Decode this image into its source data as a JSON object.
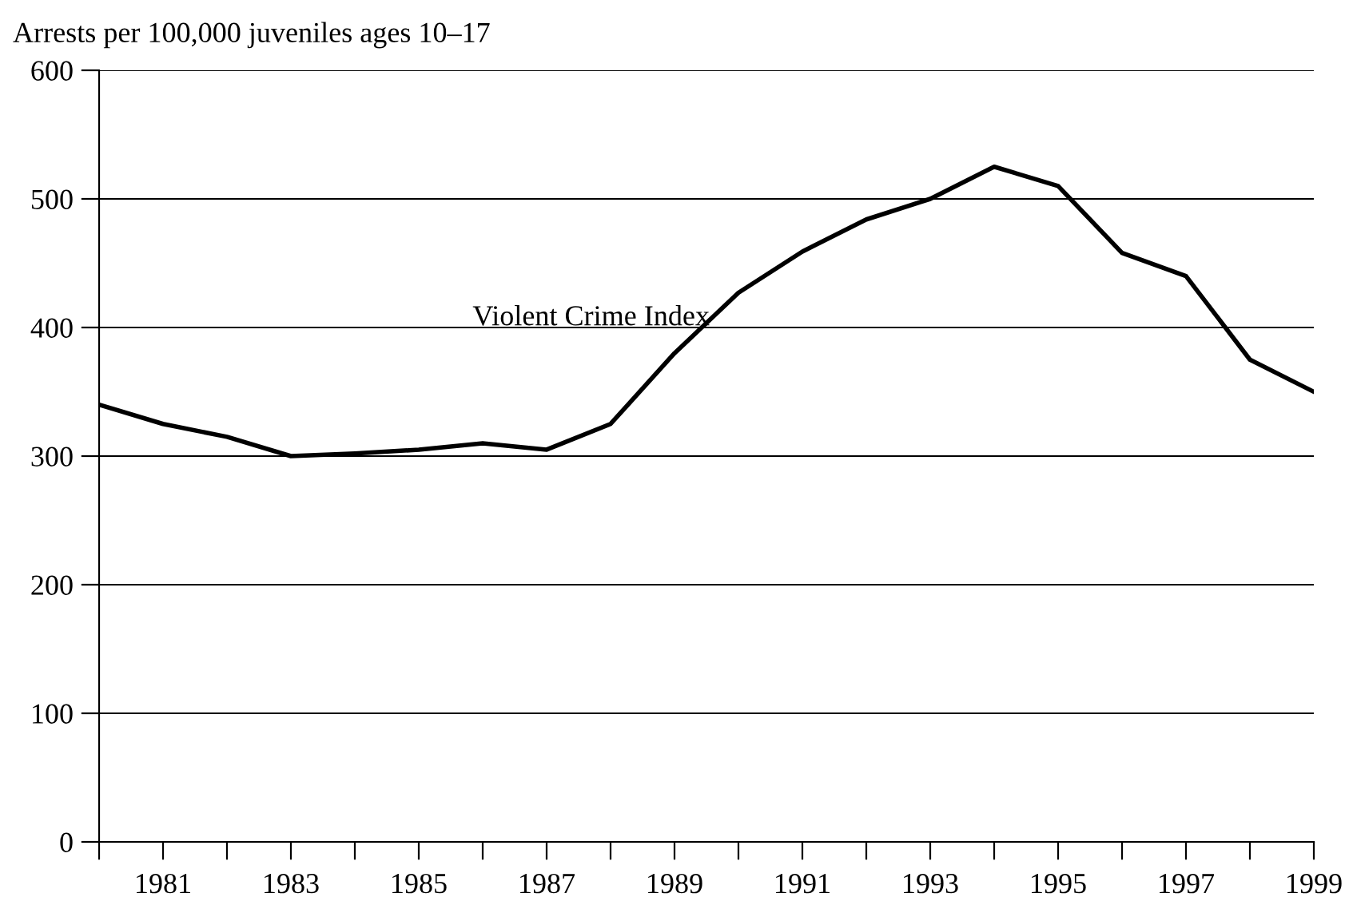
{
  "chart_data": {
    "type": "line",
    "ylabel": "Arrests per 100,000 juveniles ages 10–17",
    "x": [
      1980,
      1981,
      1982,
      1983,
      1984,
      1985,
      1986,
      1987,
      1988,
      1989,
      1990,
      1991,
      1992,
      1993,
      1994,
      1995,
      1996,
      1997,
      1998,
      1999
    ],
    "series": [
      {
        "name": "Violent Crime Index",
        "color": "#000000",
        "values": [
          340,
          325,
          315,
          300,
          302,
          305,
          310,
          305,
          325,
          380,
          427,
          459,
          484,
          500,
          525,
          510,
          458,
          440,
          375,
          350
        ]
      }
    ],
    "xlim": [
      1980,
      1999
    ],
    "xticks": [
      {
        "value": 1980,
        "label": null
      },
      1981,
      {
        "value": 1982,
        "label": null
      },
      1983,
      {
        "value": 1984,
        "label": null
      },
      1985,
      {
        "value": 1986,
        "label": null
      },
      1987,
      {
        "value": 1988,
        "label": null
      },
      1989,
      {
        "value": 1990,
        "label": null
      },
      1991,
      {
        "value": 1992,
        "label": null
      },
      1993,
      {
        "value": 1994,
        "label": null
      },
      1995,
      {
        "value": 1996,
        "label": null
      },
      1997,
      {
        "value": 1998,
        "label": null
      },
      1999
    ],
    "ylim": [
      0,
      600
    ],
    "yticks": [
      0,
      100,
      200,
      300,
      400,
      500,
      600
    ],
    "grid": "y",
    "legend": false,
    "marker": "none",
    "line_style": "solid"
  }
}
